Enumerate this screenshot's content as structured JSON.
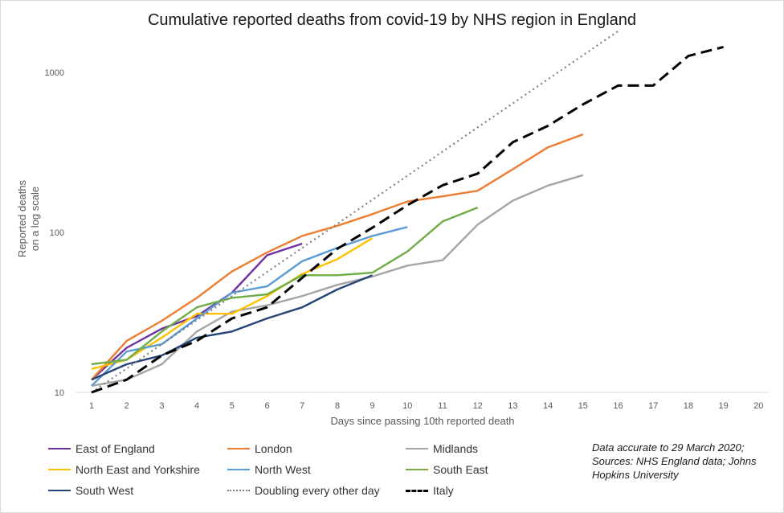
{
  "chart_data": {
    "type": "line",
    "title": "Cumulative reported deaths from covid-19 by NHS region in England",
    "xlabel": "Days since passing 10th reported death",
    "ylabel_lines": [
      "Reported deaths",
      "on a log scale"
    ],
    "x_ticks": [
      1,
      2,
      3,
      4,
      5,
      6,
      7,
      8,
      9,
      10,
      11,
      12,
      13,
      14,
      15,
      16,
      17,
      18,
      19,
      20
    ],
    "y_ticks": [
      10,
      100,
      1000
    ],
    "y_scale": "log",
    "xlim": [
      1,
      20
    ],
    "ylim": [
      10,
      1800
    ],
    "grid": false,
    "legend_position": "bottom",
    "series": [
      {
        "name": "East of England",
        "color": "#7030a0",
        "dash": "solid",
        "x": [
          1,
          2,
          3,
          4,
          5,
          6,
          7
        ],
        "y": [
          12,
          19,
          25,
          30,
          42,
          72,
          85
        ]
      },
      {
        "name": "London",
        "color": "#ed7d31",
        "dash": "solid",
        "x": [
          1,
          2,
          3,
          4,
          5,
          6,
          7,
          8,
          9,
          10,
          11,
          12,
          13,
          14,
          15
        ],
        "y": [
          12,
          21,
          28,
          39,
          57,
          75,
          95,
          110,
          130,
          156,
          168,
          182,
          248,
          340,
          410
        ]
      },
      {
        "name": "Midlands",
        "color": "#a5a5a5",
        "dash": "solid",
        "x": [
          1,
          2,
          3,
          4,
          5,
          6,
          7,
          8,
          9,
          10,
          11,
          12,
          13,
          14,
          15
        ],
        "y": [
          11,
          12,
          15,
          24,
          32,
          35,
          40,
          47,
          53,
          62,
          67,
          112,
          158,
          196,
          228
        ]
      },
      {
        "name": "North East and Yorkshire",
        "color": "#ffc000",
        "dash": "solid",
        "x": [
          1,
          2,
          3,
          4,
          5,
          6,
          7,
          8,
          9
        ],
        "y": [
          14,
          16,
          22,
          31,
          31,
          40,
          55,
          68,
          92
        ]
      },
      {
        "name": "North West",
        "color": "#5b9bd5",
        "dash": "solid",
        "x": [
          1,
          2,
          3,
          4,
          5,
          6,
          7,
          8,
          9,
          10
        ],
        "y": [
          11,
          18,
          20,
          29,
          42,
          46,
          66,
          80,
          95,
          108
        ]
      },
      {
        "name": "South East",
        "color": "#70ad47",
        "dash": "solid",
        "x": [
          1,
          2,
          3,
          4,
          5,
          6,
          7,
          8,
          9,
          10,
          11,
          12
        ],
        "y": [
          15,
          16,
          24,
          34,
          39,
          41,
          54,
          54,
          56,
          76,
          117,
          143
        ]
      },
      {
        "name": "South West",
        "color": "#264478",
        "dash": "solid",
        "x": [
          1,
          2,
          3,
          4,
          5,
          6,
          7,
          8,
          9
        ],
        "y": [
          12,
          15,
          17,
          22,
          24,
          29,
          34,
          44,
          54
        ]
      },
      {
        "name": "Doubling every other day",
        "color": "#808080",
        "dash": "dotted",
        "x": [
          1,
          2,
          3,
          4,
          5,
          6,
          7,
          8,
          9,
          10,
          11,
          12,
          13,
          14,
          15,
          16
        ],
        "y": [
          10,
          14.1,
          20,
          28.3,
          40,
          56.6,
          80,
          113,
          160,
          226,
          320,
          453,
          640,
          905,
          1280,
          1810
        ]
      },
      {
        "name": "Italy",
        "color": "#000000",
        "dash": "dashed",
        "x": [
          1,
          2,
          3,
          4,
          5,
          6,
          7,
          8,
          9,
          10,
          11,
          12,
          13,
          14,
          15,
          16,
          17,
          18,
          19
        ],
        "y": [
          10,
          12,
          17,
          21,
          29,
          34,
          52,
          79,
          107,
          148,
          197,
          233,
          366,
          463,
          631,
          827,
          827,
          1266,
          1441
        ]
      }
    ]
  },
  "notes": [
    "Data accurate to 29 March 2020;",
    "Sources: NHS England data; Johns",
    "Hopkins University"
  ]
}
